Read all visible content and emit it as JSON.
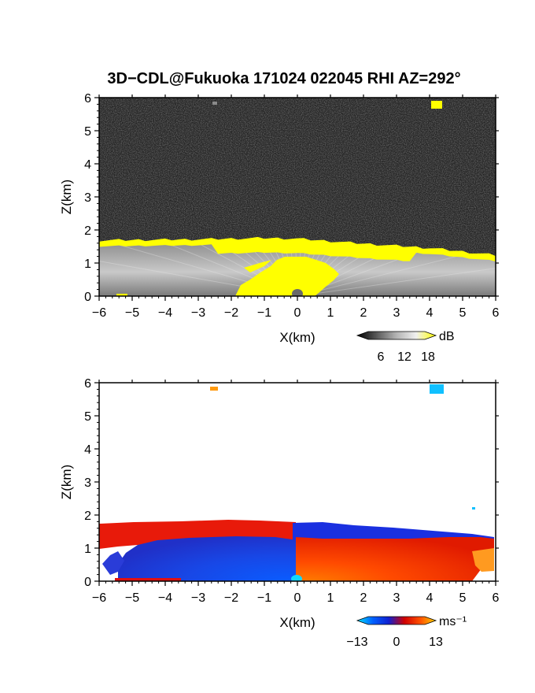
{
  "title": "3D−CDL@Fukuoka 171024 022045 RHI AZ=292°",
  "chart_data": [
    {
      "type": "heatmap",
      "name": "reflectivity",
      "xlabel": "X(km)",
      "ylabel": "Z(km)",
      "xlim": [
        -6,
        6
      ],
      "ylim": [
        0,
        6
      ],
      "xticks": [
        "−6",
        "−5",
        "−4",
        "−3",
        "−2",
        "−1",
        "0",
        "1",
        "2",
        "3",
        "4",
        "5",
        "6"
      ],
      "yticks": [
        "0",
        "1",
        "2",
        "3",
        "4",
        "5",
        "6"
      ],
      "background": "noise (dark gray)",
      "boundary_layer_top_km": [
        [
          -6,
          1.65
        ],
        [
          -3,
          1.68
        ],
        [
          -1,
          1.72
        ],
        [
          0,
          1.7
        ],
        [
          2,
          1.55
        ],
        [
          4,
          1.42
        ],
        [
          6,
          1.2
        ]
      ],
      "high_echo_zones": [
        {
          "description": "cloud base band",
          "x_range": [
            -6,
            6
          ],
          "z_range": [
            1.2,
            1.75
          ],
          "level_dB": 18
        },
        {
          "description": "near-radar plume",
          "x_range": [
            -1.8,
            1.3
          ],
          "z_range": [
            0,
            1.2
          ],
          "level_dB": 18
        },
        {
          "description": "isolated echo",
          "x": 4.2,
          "z": 5.7,
          "level_dB": 18
        }
      ],
      "colorbar": {
        "unit": "dB",
        "ticks": [
          "6",
          "12",
          "18"
        ],
        "range": [
          0,
          20
        ],
        "colors": [
          "#000000",
          "#5a5a5a",
          "#b4b4b4",
          "#f0f0f0",
          "#ffff00"
        ]
      }
    },
    {
      "type": "heatmap",
      "name": "doppler velocity",
      "xlabel": "X(km)",
      "ylabel": "Z(km)",
      "xlim": [
        -6,
        6
      ],
      "ylim": [
        0,
        6
      ],
      "xticks": [
        "−6",
        "−5",
        "−4",
        "−3",
        "−2",
        "−1",
        "0",
        "1",
        "2",
        "3",
        "4",
        "5",
        "6"
      ],
      "yticks": [
        "0",
        "1",
        "2",
        "3",
        "4",
        "5",
        "6"
      ],
      "background": "no data (white)",
      "regions": [
        {
          "description": "negative velocity near surface",
          "x_range": [
            -5.8,
            0
          ],
          "z_range": [
            0,
            1.35
          ],
          "velocity_ms": -10
        },
        {
          "description": "positive velocity near surface",
          "x_range": [
            0,
            6
          ],
          "z_range": [
            0,
            1.4
          ],
          "velocity_ms": 8
        },
        {
          "description": "positive upper layer",
          "x_range": [
            -6,
            0
          ],
          "z_range": [
            1.3,
            1.75
          ],
          "velocity_ms": 9
        },
        {
          "description": "negative upper layer",
          "x_range": [
            0,
            6
          ],
          "z_range": [
            1.4,
            1.7
          ],
          "velocity_ms": -9
        },
        {
          "description": "isolated echo",
          "x": 4.4,
          "z": 5.75,
          "velocity_ms": -13
        },
        {
          "description": "isolated echo",
          "x": -2.5,
          "z": 5.8,
          "velocity_ms": 11
        }
      ],
      "colorbar": {
        "unit": "ms⁻¹",
        "ticks": [
          "−13",
          "0",
          "13"
        ],
        "range": [
          -13,
          13
        ],
        "colors": [
          "#00e0ff",
          "#0060ff",
          "#1020d0",
          "#d00000",
          "#ff5000",
          "#ffd000"
        ]
      }
    }
  ]
}
